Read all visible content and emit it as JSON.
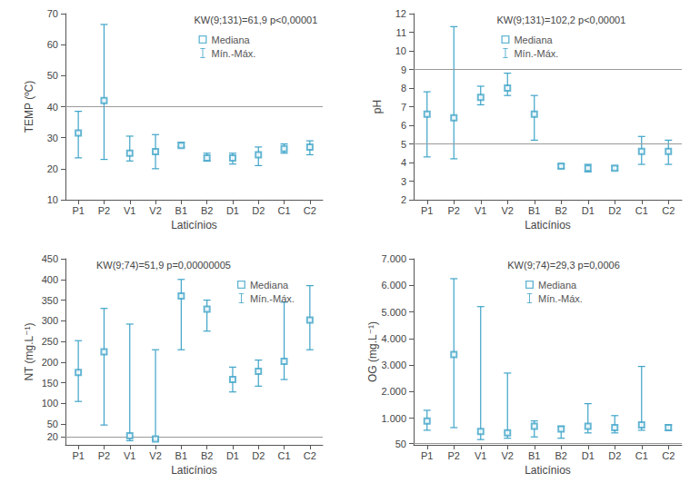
{
  "chart_data": [
    {
      "type": "scatter",
      "y_label": "TEMP (ºC)",
      "x_label": "Laticínios",
      "annotation": "KW(9;131)=61,9 p<0,00001",
      "categories": [
        "P1",
        "P2",
        "V1",
        "V2",
        "B1",
        "B2",
        "D1",
        "D2",
        "C1",
        "C2"
      ],
      "series": [
        {
          "name": "Mediana",
          "color": "#3fa4c8",
          "marker": "emptyRect",
          "values": [
            31.5,
            42,
            25,
            25.5,
            27.5,
            23.5,
            23.5,
            24.5,
            26.5,
            27
          ]
        }
      ],
      "error_bars": {
        "name": "Mín.-Máx.",
        "color": "#3fa4c8",
        "low": [
          23.5,
          23,
          22.5,
          20,
          27,
          22.5,
          21.5,
          21,
          25,
          24.5
        ],
        "high": [
          38.5,
          66.5,
          30.5,
          31,
          28.5,
          25,
          25,
          27,
          28,
          29
        ]
      },
      "reference_lines": [
        40
      ],
      "ylim": [
        10,
        70
      ],
      "yticks": [
        10,
        20,
        30,
        40,
        50,
        60,
        70
      ],
      "grid": false,
      "legend": "upper right"
    },
    {
      "type": "scatter",
      "y_label": "pH",
      "x_label": "Laticínios",
      "annotation": "KW(9;131)=102,2 p<0,00001",
      "categories": [
        "P1",
        "P2",
        "V1",
        "V2",
        "B1",
        "B2",
        "D1",
        "D2",
        "C1",
        "C2"
      ],
      "series": [
        {
          "name": "Mediana",
          "color": "#3fa4c8",
          "marker": "emptyRect",
          "values": [
            6.6,
            6.4,
            7.5,
            8.0,
            6.6,
            3.8,
            3.7,
            3.7,
            4.6,
            4.6
          ]
        }
      ],
      "error_bars": {
        "name": "Mín.-Máx.",
        "color": "#3fa4c8",
        "low": [
          4.3,
          4.2,
          7.1,
          7.6,
          5.2,
          3.7,
          3.5,
          3.6,
          3.9,
          3.9
        ],
        "high": [
          7.8,
          11.3,
          8.1,
          8.8,
          7.6,
          3.9,
          3.9,
          3.8,
          5.4,
          5.2
        ]
      },
      "reference_lines": [
        5,
        9
      ],
      "ylim": [
        2,
        12
      ],
      "yticks": [
        2,
        3,
        4,
        5,
        6,
        7,
        8,
        9,
        10,
        11,
        12
      ],
      "grid": false,
      "legend": "upper right"
    },
    {
      "type": "scatter",
      "y_label": "NT (mg.L⁻¹)",
      "x_label": "Laticínios",
      "annotation": "KW(9;74)=51,9 p=0,00000005",
      "categories": [
        "P1",
        "P2",
        "V1",
        "V2",
        "B1",
        "B2",
        "D1",
        "D2",
        "C1",
        "C2"
      ],
      "series": [
        {
          "name": "Mediana",
          "color": "#3fa4c8",
          "marker": "emptyRect",
          "values": [
            175,
            225,
            22,
            14,
            360,
            328,
            158,
            178,
            202,
            302
          ]
        }
      ],
      "error_bars": {
        "name": "Mín.-Máx.",
        "color": "#3fa4c8",
        "low": [
          105,
          48,
          10,
          12,
          230,
          275,
          128,
          142,
          158,
          230
        ],
        "high": [
          252,
          330,
          292,
          230,
          400,
          350,
          188,
          205,
          345,
          385
        ]
      },
      "reference_lines": [
        20
      ],
      "ylim": [
        0,
        450
      ],
      "yticks": [
        20,
        50,
        100,
        150,
        200,
        250,
        300,
        350,
        400,
        450
      ],
      "grid": false,
      "legend": "upper right"
    },
    {
      "type": "scatter",
      "y_label": "OG (mg.L⁻¹)",
      "x_label": "Laticínios",
      "annotation": "KW(9;74)=29,3 p=0,0006",
      "categories": [
        "P1",
        "P2",
        "V1",
        "V2",
        "B1",
        "B2",
        "D1",
        "D2",
        "C1",
        "C2"
      ],
      "series": [
        {
          "name": "Mediana",
          "color": "#3fa4c8",
          "marker": "emptyRect",
          "values": [
            900,
            3400,
            500,
            450,
            700,
            600,
            700,
            650,
            750,
            650
          ]
        }
      ],
      "error_bars": {
        "name": "Mín.-Máx.",
        "color": "#3fa4c8",
        "low": [
          550,
          650,
          200,
          250,
          300,
          250,
          450,
          450,
          550,
          550
        ],
        "high": [
          1300,
          6250,
          5200,
          2700,
          900,
          700,
          1550,
          1100,
          2950,
          750
        ]
      },
      "reference_lines": [
        50
      ],
      "ylim": [
        0,
        7000
      ],
      "yticks": [
        50,
        {
          "value": 1000,
          "label": "1.000"
        },
        {
          "value": 2000,
          "label": "2.000"
        },
        {
          "value": 3000,
          "label": "3.000"
        },
        {
          "value": 4000,
          "label": "4.000"
        },
        {
          "value": 5000,
          "label": "5.000"
        },
        {
          "value": 6000,
          "label": "6.000"
        },
        {
          "value": 7000,
          "label": "7.000"
        }
      ],
      "grid": false,
      "legend": "upper right"
    }
  ]
}
